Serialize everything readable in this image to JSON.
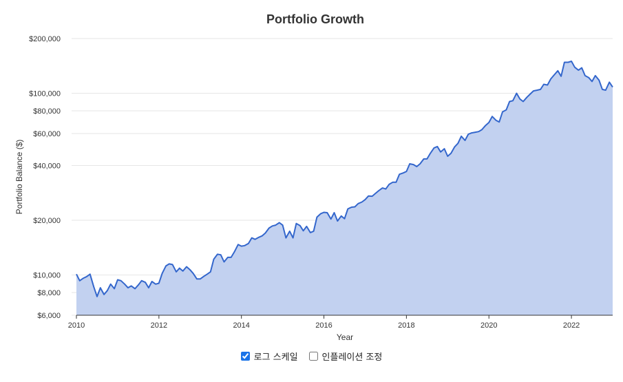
{
  "chart_data": {
    "type": "area",
    "title": "Portfolio Growth",
    "xlabel": "Year",
    "ylabel": "Portfolio Balance ($)",
    "y_scale": "log",
    "ylim": [
      6000,
      200000
    ],
    "xlim": [
      2010,
      2023.0
    ],
    "grid": true,
    "legend": "none",
    "x_ticks": [
      2010,
      2012,
      2014,
      2016,
      2018,
      2020,
      2022
    ],
    "x_tick_labels": [
      "2010",
      "2012",
      "2014",
      "2016",
      "2018",
      "2020",
      "2022"
    ],
    "y_ticks": [
      6000,
      8000,
      10000,
      20000,
      40000,
      60000,
      80000,
      100000,
      200000
    ],
    "y_tick_labels": [
      "$6,000",
      "$8,000",
      "$10,000",
      "$20,000",
      "$40,000",
      "$60,000",
      "$80,000",
      "$100,000",
      "$200,000"
    ],
    "colors": {
      "line": "#3366cc",
      "fill": "#c2d1f0"
    },
    "series": [
      {
        "x": [
          2010.0,
          2010.08,
          2010.17,
          2010.25,
          2010.33,
          2010.42,
          2010.5,
          2010.58,
          2010.67,
          2010.75,
          2010.83,
          2010.92,
          2011.0,
          2011.08,
          2011.17,
          2011.25,
          2011.33,
          2011.42,
          2011.5,
          2011.58,
          2011.67,
          2011.75,
          2011.83,
          2011.92,
          2012.0,
          2012.08,
          2012.17,
          2012.25,
          2012.33,
          2012.42,
          2012.5,
          2012.58,
          2012.67,
          2012.75,
          2012.83,
          2012.92,
          2013.0,
          2013.08,
          2013.17,
          2013.25,
          2013.33,
          2013.42,
          2013.5,
          2013.58,
          2013.67,
          2013.75,
          2013.83,
          2013.92,
          2014.0,
          2014.08,
          2014.17,
          2014.25,
          2014.33,
          2014.42,
          2014.5,
          2014.58,
          2014.67,
          2014.75,
          2014.83,
          2014.92,
          2015.0,
          2015.08,
          2015.17,
          2015.25,
          2015.33,
          2015.42,
          2015.5,
          2015.58,
          2015.67,
          2015.75,
          2015.83,
          2015.92,
          2016.0,
          2016.08,
          2016.17,
          2016.25,
          2016.33,
          2016.42,
          2016.5,
          2016.58,
          2016.67,
          2016.75,
          2016.83,
          2016.92,
          2017.0,
          2017.08,
          2017.17,
          2017.25,
          2017.33,
          2017.42,
          2017.5,
          2017.58,
          2017.67,
          2017.75,
          2017.83,
          2017.92,
          2018.0,
          2018.08,
          2018.17,
          2018.25,
          2018.33,
          2018.42,
          2018.5,
          2018.58,
          2018.67,
          2018.75,
          2018.83,
          2018.92,
          2019.0,
          2019.08,
          2019.17,
          2019.25,
          2019.33,
          2019.42,
          2019.5,
          2019.58,
          2019.67,
          2019.75,
          2019.83,
          2019.92,
          2020.0,
          2020.08,
          2020.17,
          2020.25,
          2020.33,
          2020.42,
          2020.5,
          2020.58,
          2020.67,
          2020.75,
          2020.83,
          2020.92,
          2021.0,
          2021.08,
          2021.17,
          2021.25,
          2021.33,
          2021.42,
          2021.5,
          2021.58,
          2021.67,
          2021.75,
          2021.83,
          2021.92,
          2022.0,
          2022.08,
          2022.17,
          2022.25,
          2022.33,
          2022.42,
          2022.5,
          2022.58,
          2022.67,
          2022.75,
          2022.83,
          2022.92,
          2023.0
        ],
        "values": [
          10100,
          9300,
          9600,
          9800,
          10100,
          8600,
          7600,
          8500,
          7800,
          8200,
          8900,
          8400,
          9400,
          9300,
          8900,
          8500,
          8700,
          8400,
          8800,
          9300,
          9100,
          8500,
          9200,
          8900,
          9000,
          10200,
          11200,
          11500,
          11400,
          10400,
          10900,
          10500,
          11100,
          10700,
          10200,
          9500,
          9500,
          9800,
          10100,
          10400,
          12200,
          13000,
          12900,
          11800,
          12500,
          12500,
          13400,
          14700,
          14400,
          14500,
          14900,
          16000,
          15700,
          16100,
          16400,
          17000,
          18100,
          18600,
          18800,
          19400,
          18800,
          16000,
          17400,
          16000,
          19200,
          18700,
          17500,
          18500,
          17100,
          17400,
          20800,
          21700,
          22100,
          22000,
          20300,
          22000,
          19800,
          21100,
          20400,
          23100,
          23600,
          23700,
          24700,
          25200,
          26000,
          27200,
          27100,
          28100,
          29100,
          30100,
          29700,
          31500,
          32400,
          32400,
          35800,
          36400,
          37100,
          40900,
          40500,
          39500,
          40900,
          43500,
          43500,
          46700,
          50000,
          50900,
          47500,
          49500,
          45000,
          46700,
          50700,
          53000,
          58000,
          55000,
          59500,
          60500,
          61000,
          61500,
          63000,
          66500,
          69000,
          74500,
          71000,
          69500,
          79000,
          81000,
          90000,
          91000,
          100000,
          93000,
          90000,
          95000,
          99000,
          103000,
          104000,
          105000,
          112000,
          111000,
          120000,
          126000,
          133000,
          124000,
          148000,
          148000,
          150000,
          139000,
          134000,
          138000,
          125000,
          122000,
          116000,
          125000,
          118000,
          105000,
          104000,
          115000,
          108000
        ]
      }
    ]
  },
  "controls": {
    "log_scale_label": "로그 스케일",
    "log_scale_checked": true,
    "inflation_label": "인플레이션 조정",
    "inflation_checked": false
  }
}
